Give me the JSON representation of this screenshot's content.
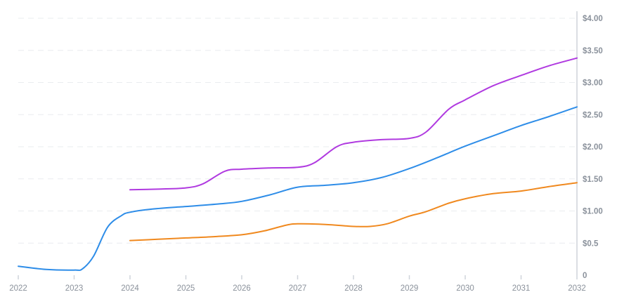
{
  "chart_data": {
    "type": "line",
    "x_ticks": [
      "2022",
      "2023",
      "2024",
      "2025",
      "2026",
      "2027",
      "2028",
      "2029",
      "2030",
      "2031",
      "2032"
    ],
    "y_ticks": [
      "0",
      "$0.5",
      "$1.00",
      "$1.50",
      "$2.00",
      "$2.50",
      "$3.00",
      "$3.50",
      "$4.00"
    ],
    "xlim": [
      2022,
      2032
    ],
    "ylim": [
      0,
      4
    ],
    "grid": true,
    "colors": {
      "blue": "#2e8de8",
      "purple": "#b03ae0",
      "orange": "#f0891f"
    },
    "series": [
      {
        "color": "#2e8de8",
        "x": [
          2022.0,
          2022.5,
          2023.0,
          2023.15,
          2023.35,
          2023.6,
          2023.85,
          2024.0,
          2024.4,
          2025.0,
          2025.6,
          2026.0,
          2026.5,
          2027.0,
          2027.5,
          2028.0,
          2028.5,
          2029.0,
          2029.5,
          2030.0,
          2030.5,
          2031.0,
          2031.5,
          2032.0
        ],
        "values": [
          0.14,
          0.09,
          0.08,
          0.1,
          0.3,
          0.75,
          0.93,
          0.98,
          1.03,
          1.07,
          1.11,
          1.15,
          1.25,
          1.37,
          1.4,
          1.44,
          1.52,
          1.66,
          1.83,
          2.01,
          2.17,
          2.33,
          2.47,
          2.62
        ]
      },
      {
        "color": "#b03ae0",
        "x": [
          2024.0,
          2024.5,
          2025.0,
          2025.3,
          2025.7,
          2026.0,
          2026.5,
          2027.0,
          2027.3,
          2027.7,
          2028.0,
          2028.5,
          2029.0,
          2029.3,
          2029.7,
          2030.0,
          2030.5,
          2031.0,
          2031.5,
          2032.0
        ],
        "values": [
          1.33,
          1.34,
          1.36,
          1.42,
          1.62,
          1.65,
          1.67,
          1.68,
          1.75,
          2.0,
          2.07,
          2.11,
          2.13,
          2.23,
          2.58,
          2.73,
          2.95,
          3.11,
          3.26,
          3.38
        ]
      },
      {
        "color": "#f0891f",
        "x": [
          2024.0,
          2024.5,
          2025.0,
          2025.5,
          2026.0,
          2026.4,
          2026.8,
          2027.0,
          2027.5,
          2028.0,
          2028.3,
          2028.6,
          2029.0,
          2029.3,
          2029.7,
          2030.0,
          2030.5,
          2031.0,
          2031.5,
          2032.0
        ],
        "values": [
          0.54,
          0.56,
          0.58,
          0.6,
          0.63,
          0.69,
          0.78,
          0.8,
          0.79,
          0.76,
          0.76,
          0.8,
          0.92,
          0.99,
          1.12,
          1.19,
          1.27,
          1.31,
          1.38,
          1.44
        ]
      }
    ]
  }
}
